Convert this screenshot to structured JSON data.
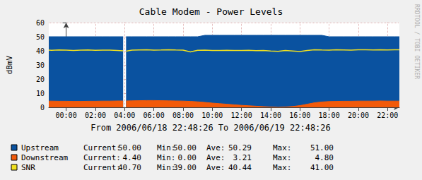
{
  "chart_data": {
    "type": "line",
    "title": "Cable Modem - Power Levels",
    "x_label": "From 2006/06/18 22:48:26 To 2006/06/19 22:48:26",
    "y_label": "dBmV",
    "watermark": "RRDTOOL / TOBI OETIKER",
    "x": [
      -1.19,
      -1,
      -0.5,
      0,
      0.5,
      1,
      1.5,
      2,
      2.5,
      3,
      3.5,
      3.9,
      4,
      4.1,
      4.5,
      5,
      5.5,
      6,
      6.5,
      7,
      7.5,
      8,
      8.5,
      9,
      9.5,
      10,
      10.5,
      11,
      11.5,
      12,
      12.5,
      13,
      13.5,
      14,
      14.5,
      15,
      15.5,
      16,
      16.5,
      17,
      17.5,
      18,
      18.5,
      19,
      19.5,
      20,
      20.5,
      21,
      21.5,
      22,
      22.5,
      22.81
    ],
    "xlim": [
      -1.19,
      22.81
    ],
    "xticks": [
      {
        "value": 0,
        "label": "00:00"
      },
      {
        "value": 2,
        "label": "02:00"
      },
      {
        "value": 4,
        "label": "04:00"
      },
      {
        "value": 6,
        "label": "06:00"
      },
      {
        "value": 8,
        "label": "08:00"
      },
      {
        "value": 10,
        "label": "10:00"
      },
      {
        "value": 12,
        "label": "12:00"
      },
      {
        "value": 14,
        "label": "14:00"
      },
      {
        "value": 16,
        "label": "16:00"
      },
      {
        "value": 18,
        "label": "18:00"
      },
      {
        "value": 20,
        "label": "20:00"
      },
      {
        "value": 22,
        "label": "22:00"
      }
    ],
    "ylim": [
      0,
      60
    ],
    "yticks": [
      0,
      10,
      20,
      30,
      40,
      50,
      60
    ],
    "grid": true,
    "stat_labels": [
      "Current:",
      "Min:",
      "Ave:",
      "Max:"
    ],
    "series": [
      {
        "name": "Upstream",
        "type": "area",
        "color": "#0a52a0",
        "stats": [
          "50.00",
          "50.00",
          "50.29",
          "51.00"
        ],
        "values": [
          50,
          50,
          50,
          50,
          50,
          50,
          50,
          50,
          50,
          50,
          50,
          50,
          null,
          50,
          50,
          50,
          50,
          50,
          50,
          50,
          50,
          50,
          50,
          50,
          51,
          51,
          51,
          51,
          51,
          51,
          51,
          51,
          51,
          51,
          51,
          51,
          51,
          51,
          51,
          51,
          51,
          50,
          50,
          50,
          50,
          50,
          50,
          50,
          50,
          50,
          50,
          50
        ]
      },
      {
        "name": "Downstream",
        "type": "area",
        "color": "#f25a0a",
        "stats": [
          "4.40",
          "0.00",
          "3.21",
          "4.80"
        ],
        "values": [
          4.4,
          4.4,
          4.3,
          4.3,
          4.2,
          4.2,
          4.3,
          4.3,
          4.4,
          4.4,
          4.5,
          4.5,
          null,
          4.5,
          4.6,
          4.7,
          4.8,
          4.8,
          4.7,
          4.6,
          4.5,
          4.4,
          4.2,
          3.9,
          3.5,
          3.0,
          2.6,
          2.2,
          1.8,
          1.4,
          1.1,
          0.8,
          0.5,
          0.2,
          0.0,
          0.2,
          0.6,
          1.2,
          2.2,
          3.2,
          3.8,
          4.1,
          4.2,
          4.3,
          4.3,
          4.4,
          4.4,
          4.4,
          4.5,
          4.4,
          4.4,
          4.4
        ]
      },
      {
        "name": "SNR",
        "type": "line",
        "color": "#f0e020",
        "stats": [
          "40.70",
          "39.00",
          "40.44",
          "41.00"
        ],
        "values": [
          40.5,
          40.4,
          40.6,
          40.5,
          40.3,
          40.5,
          40.6,
          40.4,
          40.5,
          40.5,
          40.3,
          40.0,
          null,
          39.8,
          40.5,
          40.6,
          40.7,
          40.5,
          40.6,
          40.8,
          40.6,
          40.5,
          39.3,
          40.4,
          40.5,
          40.3,
          40.2,
          40.4,
          40.3,
          40.2,
          40.4,
          40.1,
          40.3,
          39.9,
          39.6,
          40.2,
          39.9,
          39.5,
          40.3,
          40.8,
          40.6,
          40.5,
          40.7,
          40.6,
          40.5,
          40.8,
          40.7,
          40.6,
          40.8,
          40.6,
          40.7,
          40.7
        ]
      }
    ]
  }
}
